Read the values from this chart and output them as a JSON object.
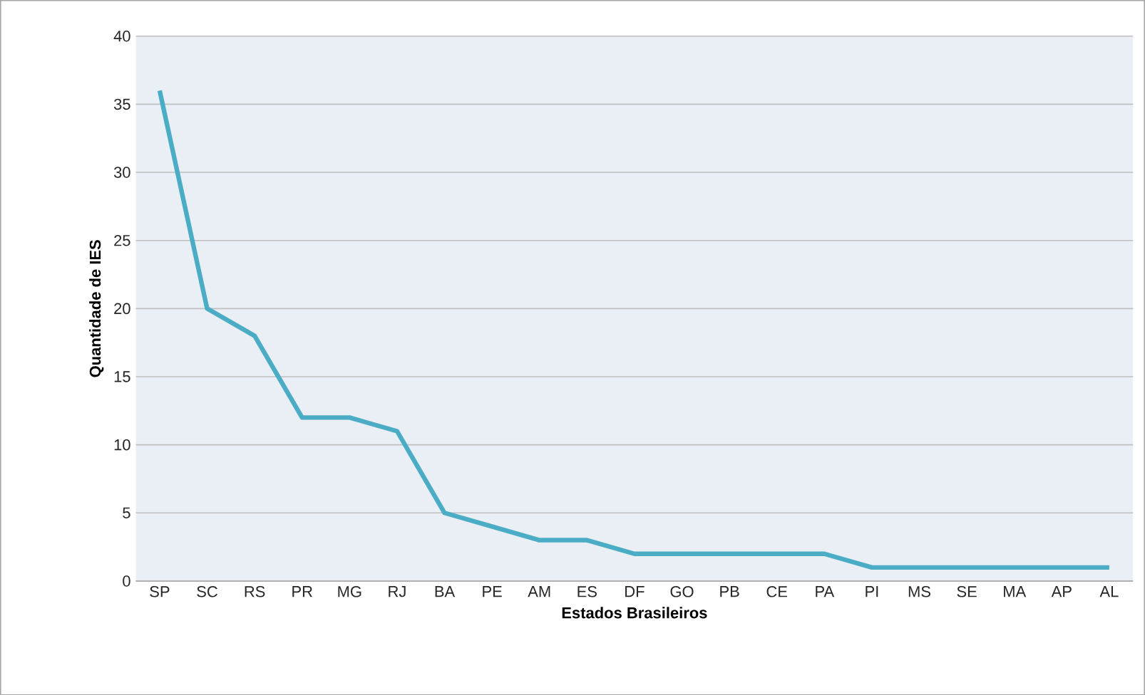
{
  "chart_data": {
    "type": "line",
    "xlabel": "Estados Brasileiros",
    "ylabel": "Quantidade de IES",
    "categories": [
      "SP",
      "SC",
      "RS",
      "PR",
      "MG",
      "RJ",
      "BA",
      "PE",
      "AM",
      "ES",
      "DF",
      "GO",
      "PB",
      "CE",
      "PA",
      "PI",
      "MS",
      "SE",
      "MA",
      "AP",
      "AL"
    ],
    "series": [
      {
        "color": "#4bacc6",
        "values": [
          36,
          20,
          18,
          12,
          12,
          11,
          5,
          4,
          3,
          3,
          2,
          2,
          2,
          2,
          2,
          1,
          1,
          1,
          1,
          1,
          1
        ]
      }
    ],
    "ylim": [
      0,
      40
    ],
    "yticks": [
      0,
      5,
      10,
      15,
      20,
      25,
      30,
      35,
      40
    ],
    "grid": "y",
    "marker": "none",
    "line_style": "solid"
  }
}
